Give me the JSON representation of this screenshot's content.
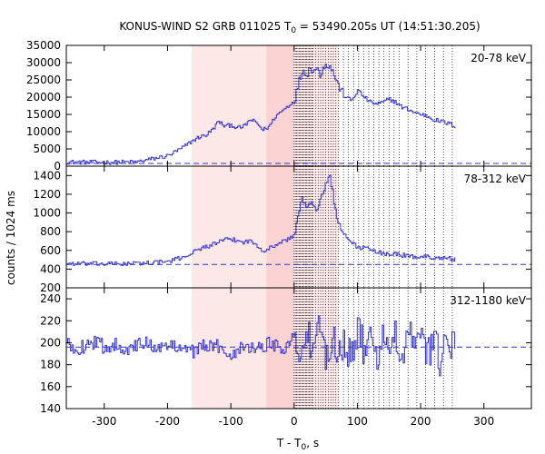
{
  "chart_data": {
    "type": "line",
    "title": "KONUS-WIND S2 GRB 011025 T₀ = 53490.205s UT (14:51:30.205)",
    "title_prefix": "KONUS-WIND S2 GRB 011025 T",
    "title_sub": "0",
    "title_suffix": " = 53490.205s UT (14:51:30.205)",
    "xlabel": "T - T₀, s",
    "xlabel_prefix": "T - T",
    "xlabel_sub": "0",
    "xlabel_suffix": ", s",
    "ylabel": "counts / 1024 ms",
    "xlim": [
      -360,
      375
    ],
    "xticks": [
      -300,
      -200,
      -100,
      0,
      100,
      200,
      300
    ],
    "xtick_labels": [
      "-300",
      "-200",
      "-100",
      "0",
      "100",
      "200",
      "300"
    ],
    "colors": {
      "series": "#3333cc",
      "background_band": "#fde8e8",
      "foreground_band": "#fbd3d3",
      "axis": "#000000",
      "dotted": "#000000"
    },
    "shaded_intervals": [
      {
        "x0": -162,
        "x1": -44,
        "shade": "light"
      },
      {
        "x0": -44,
        "x1": 0,
        "shade": "dark"
      },
      {
        "x0": 0,
        "x1": 70,
        "shade": "light"
      }
    ],
    "dotted_line_times": [
      0,
      2,
      4,
      6,
      8,
      10,
      12,
      14,
      16,
      18,
      20,
      22,
      24,
      26,
      28,
      30,
      34,
      38,
      42,
      46,
      50,
      54,
      58,
      62,
      66,
      70,
      78,
      86,
      94,
      102,
      110,
      118,
      126,
      134,
      142,
      150,
      158,
      166,
      180,
      194,
      208,
      222,
      236,
      250
    ],
    "panels": [
      {
        "band": "20-78 keV",
        "ylim": [
          0,
          35000
        ],
        "yticks": [
          0,
          5000,
          10000,
          15000,
          20000,
          25000,
          30000,
          35000
        ],
        "ytick_labels": [
          "0",
          "5000",
          "10000",
          "15000",
          "20000",
          "25000",
          "30000",
          "35000"
        ],
        "background_level": 800,
        "x": [
          -360,
          -300,
          -250,
          -200,
          -180,
          -160,
          -150,
          -140,
          -130,
          -120,
          -110,
          -100,
          -90,
          -80,
          -70,
          -60,
          -50,
          -40,
          -30,
          -20,
          -10,
          0,
          5,
          10,
          15,
          20,
          25,
          30,
          35,
          40,
          45,
          50,
          55,
          60,
          65,
          70,
          75,
          80,
          85,
          90,
          95,
          100,
          110,
          120,
          130,
          140,
          150,
          160,
          170,
          180,
          190,
          200,
          210,
          220,
          230,
          240,
          250,
          255
        ],
        "y": [
          1200,
          1100,
          1200,
          3000,
          5000,
          7500,
          8500,
          9000,
          10500,
          13000,
          11500,
          12000,
          11000,
          11500,
          13500,
          12500,
          10500,
          11500,
          14500,
          16000,
          17500,
          19000,
          23000,
          26500,
          28000,
          26500,
          29000,
          27500,
          28500,
          26500,
          28500,
          30000,
          28500,
          28000,
          25000,
          23000,
          21500,
          20500,
          19500,
          19000,
          20500,
          22000,
          20000,
          18500,
          18000,
          18500,
          19500,
          18500,
          17000,
          16500,
          15500,
          15000,
          14500,
          13500,
          13000,
          12500,
          12000,
          11500
        ]
      },
      {
        "band": "78-312 keV",
        "ylim": [
          200,
          1500
        ],
        "yticks": [
          200,
          400,
          600,
          800,
          1000,
          1200,
          1400
        ],
        "ytick_labels": [
          "200",
          "400",
          "600",
          "800",
          "1000",
          "1200",
          "1400"
        ],
        "background_level": 450,
        "x": [
          -360,
          -300,
          -250,
          -200,
          -180,
          -160,
          -150,
          -140,
          -130,
          -120,
          -110,
          -100,
          -90,
          -80,
          -70,
          -60,
          -50,
          -40,
          -30,
          -20,
          -10,
          0,
          5,
          10,
          15,
          20,
          25,
          30,
          35,
          40,
          45,
          50,
          55,
          60,
          65,
          70,
          75,
          80,
          85,
          90,
          95,
          100,
          110,
          120,
          130,
          140,
          150,
          160,
          170,
          180,
          190,
          200,
          210,
          220,
          230,
          240,
          250,
          255
        ],
        "y": [
          460,
          455,
          460,
          480,
          520,
          580,
          620,
          640,
          660,
          690,
          710,
          720,
          700,
          690,
          700,
          660,
          600,
          620,
          660,
          690,
          720,
          760,
          980,
          1150,
          1100,
          1050,
          1080,
          1120,
          1040,
          1120,
          1200,
          1320,
          1380,
          1260,
          1000,
          860,
          800,
          760,
          720,
          690,
          660,
          620,
          640,
          600,
          580,
          570,
          560,
          560,
          550,
          540,
          530,
          535,
          530,
          525,
          520,
          515,
          510,
          505
        ]
      },
      {
        "band": "312-1180 keV",
        "ylim": [
          140,
          250
        ],
        "yticks": [
          140,
          160,
          180,
          200,
          220,
          240
        ],
        "ytick_labels": [
          "140",
          "160",
          "180",
          "200",
          "220",
          "240"
        ],
        "background_level": 196,
        "x": [
          -360,
          -340,
          -320,
          -300,
          -280,
          -260,
          -240,
          -220,
          -200,
          -180,
          -160,
          -140,
          -120,
          -100,
          -80,
          -60,
          -40,
          -20,
          0,
          10,
          20,
          30,
          40,
          50,
          60,
          70,
          80,
          90,
          100,
          110,
          120,
          130,
          140,
          150,
          160,
          170,
          180,
          190,
          200,
          210,
          220,
          230,
          240,
          250,
          255
        ],
        "y": [
          198,
          195,
          201,
          196,
          199,
          193,
          200,
          197,
          195,
          199,
          192,
          198,
          196,
          190,
          199,
          194,
          200,
          195,
          205,
          190,
          210,
          185,
          214,
          188,
          206,
          192,
          202,
          186,
          210,
          195,
          200,
          185,
          212,
          190,
          205,
          178,
          215,
          188,
          205,
          192,
          200,
          185,
          198,
          197,
          196
        ]
      }
    ]
  }
}
